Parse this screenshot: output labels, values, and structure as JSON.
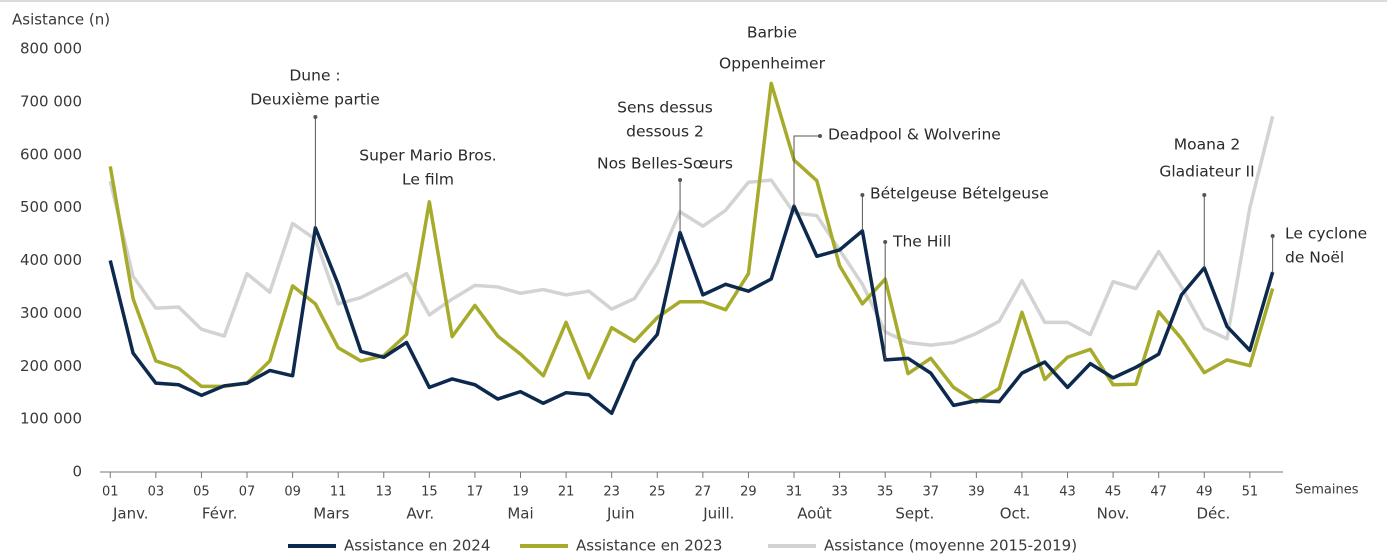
{
  "chart_data": {
    "type": "line",
    "y_label": "Asistance (n)",
    "x_label": "Semaines",
    "x": [
      1,
      2,
      3,
      4,
      5,
      6,
      7,
      8,
      9,
      10,
      11,
      12,
      13,
      14,
      15,
      16,
      17,
      18,
      19,
      20,
      21,
      22,
      23,
      24,
      25,
      26,
      27,
      28,
      29,
      30,
      31,
      32,
      33,
      34,
      35,
      36,
      37,
      38,
      39,
      40,
      41,
      42,
      43,
      44,
      45,
      46,
      47,
      48,
      49,
      50,
      51,
      52
    ],
    "xlim": [
      0.55,
      53.2
    ],
    "xticks": [
      {
        "value": 1,
        "label": "01"
      },
      {
        "value": 3,
        "label": "03"
      },
      {
        "value": 5,
        "label": "05"
      },
      {
        "value": 7,
        "label": "07"
      },
      {
        "value": 9,
        "label": "09"
      },
      11,
      13,
      15,
      17,
      19,
      21,
      23,
      25,
      27,
      29,
      31,
      33,
      35,
      37,
      39,
      41,
      43,
      45,
      47,
      49,
      51
    ],
    "month_ticks": [
      {
        "value": 1.9,
        "label": "Janv."
      },
      {
        "value": 5.8,
        "label": "Févr."
      },
      {
        "value": 10.7,
        "label": "Mars"
      },
      {
        "value": 14.6,
        "label": "Avr."
      },
      {
        "value": 19,
        "label": "Mai"
      },
      {
        "value": 23.4,
        "label": "Juin"
      },
      {
        "value": 27.7,
        "label": "Juill."
      },
      {
        "value": 31.9,
        "label": "Août"
      },
      {
        "value": 36.3,
        "label": "Sept."
      },
      {
        "value": 40.7,
        "label": "Oct."
      },
      {
        "value": 45,
        "label": "Nov."
      },
      {
        "value": 49.4,
        "label": "Déc."
      }
    ],
    "ylim": [
      0,
      800000
    ],
    "yticks": [
      0,
      {
        "value": 100000,
        "label": "100 000"
      },
      {
        "value": 200000,
        "label": "200 000"
      },
      {
        "value": 300000,
        "label": "300 000"
      },
      {
        "value": 400000,
        "label": "400 000"
      },
      {
        "value": 500000,
        "label": "500 000"
      },
      {
        "value": 600000,
        "label": "600 000"
      },
      {
        "value": 700000,
        "label": "700 000"
      },
      {
        "value": 800000,
        "label": "800 000"
      }
    ],
    "series": [
      {
        "name": "Assistance (moyenne 2015-2019)",
        "color": "#d3d3d3",
        "values": [
          550000,
          370000,
          310000,
          312000,
          270000,
          257000,
          375000,
          340000,
          470000,
          440000,
          318000,
          330000,
          352000,
          375000,
          297000,
          327000,
          353000,
          350000,
          338000,
          345000,
          335000,
          342000,
          308000,
          328000,
          395000,
          492000,
          465000,
          495000,
          548000,
          552000,
          490000,
          485000,
          420000,
          355000,
          265000,
          245000,
          240000,
          245000,
          262000,
          285000,
          362000,
          283000,
          283000,
          260000,
          360000,
          347000,
          417000,
          350000,
          272000,
          252000,
          500000,
          673000
        ]
      },
      {
        "name": "Assistance en 2023",
        "color": "#a6ab2b",
        "values": [
          578000,
          328000,
          210000,
          196000,
          162000,
          162000,
          168000,
          210000,
          352000,
          318000,
          235000,
          210000,
          220000,
          260000,
          511000,
          256000,
          315000,
          257000,
          223000,
          182000,
          283000,
          178000,
          273000,
          247000,
          292000,
          322000,
          322000,
          307000,
          375000,
          735000,
          590000,
          551000,
          390000,
          318000,
          365000,
          186000,
          215000,
          160000,
          132000,
          158000,
          302000,
          175000,
          217000,
          232000,
          165000,
          166000,
          303000,
          252000,
          188000,
          212000,
          201000,
          347000
        ]
      },
      {
        "name": "Assistance en 2024",
        "color": "#0d2a4e",
        "values": [
          400000,
          225000,
          168000,
          165000,
          145000,
          163000,
          168000,
          192000,
          182000,
          462000,
          355000,
          228000,
          217000,
          245000,
          160000,
          176000,
          165000,
          138000,
          152000,
          130000,
          150000,
          146000,
          111000,
          210000,
          260000,
          453000,
          335000,
          355000,
          342000,
          365000,
          503000,
          408000,
          420000,
          456000,
          212000,
          215000,
          187000,
          126000,
          135000,
          133000,
          187000,
          208000,
          160000,
          205000,
          178000,
          198000,
          223000,
          335000,
          386000,
          275000,
          230000,
          378000
        ]
      }
    ],
    "legend_order": [
      2,
      1,
      0
    ],
    "annotations": [
      {
        "lines": [
          "Dune :",
          "Deuxième partie"
        ],
        "week": 10
      },
      {
        "lines": [
          "Super Mario Bros.",
          "Le film"
        ]
      },
      {
        "lines": [
          "Sens dessus",
          "dessous 2",
          "Nos Belles-Sœurs"
        ],
        "week": 26
      },
      {
        "lines": [
          "Barbie",
          "Oppenheimer"
        ]
      },
      {
        "lines": [
          "Deadpool & Wolverine"
        ],
        "week": 31
      },
      {
        "lines": [
          "Bételgeuse Bételgeuse"
        ],
        "week": 34
      },
      {
        "lines": [
          "The Hill"
        ],
        "week": 35
      },
      {
        "lines": [
          "Moana 2",
          "Gladiateur II"
        ],
        "week": 49
      },
      {
        "lines": [
          "Le cyclone",
          "de Noël"
        ],
        "week": 52
      }
    ]
  }
}
